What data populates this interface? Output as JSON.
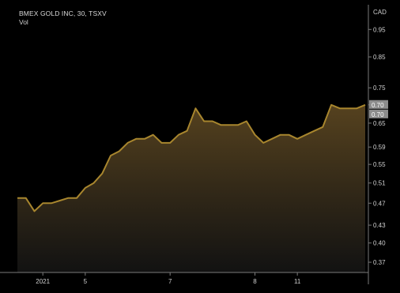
{
  "header": {
    "title": "BMEX GOLD INC, 30, TSXV",
    "volume_label": "Vol"
  },
  "colors": {
    "background": "#000000",
    "line": "#a8862e",
    "fill_top": "#5a4520",
    "fill_bottom": "#141414",
    "axis_line": "#7a7a7a",
    "text": "#cfcfcf",
    "price_tag_bg": "#8c8c8c",
    "price_tag_text": "#ffffff"
  },
  "chart_data": {
    "type": "area",
    "currency": "CAD",
    "y_scale": "log",
    "ylim": [
      0.355,
      1.05
    ],
    "grid": false,
    "y_ticks": [
      0.95,
      0.85,
      0.75,
      0.7,
      0.65,
      0.59,
      0.55,
      0.51,
      0.47,
      0.43,
      0.4,
      0.37
    ],
    "x_ticks": [
      {
        "label": "2021",
        "index": 3
      },
      {
        "label": "5",
        "index": 8
      },
      {
        "label": "7",
        "index": 18
      },
      {
        "label": "8",
        "index": 28
      },
      {
        "label": "11",
        "index": 33
      }
    ],
    "last_value_labels": [
      "0.70",
      "0.70"
    ],
    "values": [
      0.48,
      0.48,
      0.455,
      0.47,
      0.47,
      0.475,
      0.48,
      0.48,
      0.5,
      0.51,
      0.53,
      0.57,
      0.58,
      0.6,
      0.61,
      0.61,
      0.62,
      0.6,
      0.6,
      0.62,
      0.63,
      0.69,
      0.655,
      0.655,
      0.645,
      0.645,
      0.645,
      0.655,
      0.62,
      0.6,
      0.61,
      0.62,
      0.62,
      0.61,
      0.62,
      0.63,
      0.64,
      0.7,
      0.69,
      0.69,
      0.69,
      0.7
    ]
  }
}
